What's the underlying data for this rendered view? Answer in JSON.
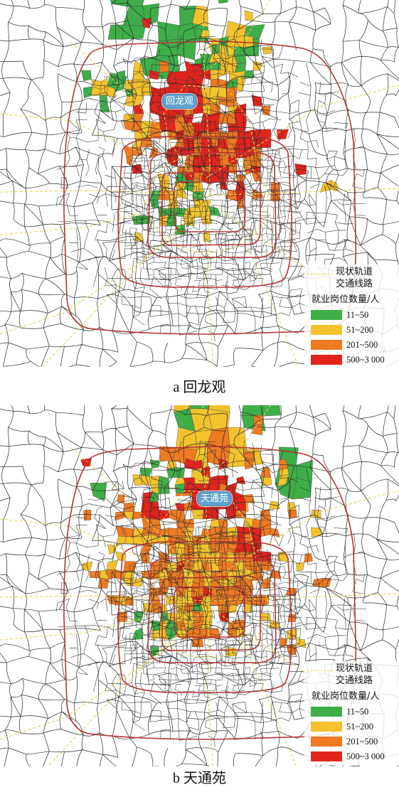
{
  "panels": [
    {
      "id": "a",
      "caption": "a 回龙观",
      "location_label": "回龙观"
    },
    {
      "id": "b",
      "caption": "b 天通苑",
      "location_label": "天通苑"
    }
  ],
  "legend": {
    "rail_label_line1": "现状轨道",
    "rail_label_line2": "交通线路",
    "title": "就业岗位数量/人",
    "classes": [
      {
        "label": "11~50",
        "color": "#3fae49"
      },
      {
        "label": "51~200",
        "color": "#f3c22d"
      },
      {
        "label": "201~500",
        "color": "#ee7a22"
      },
      {
        "label": "500~3 000",
        "color": "#e3241c"
      }
    ]
  },
  "colors": {
    "ring_road": "#b33434",
    "road": "#2a2a2a",
    "rail_line": "#e6d54e",
    "label_bubble": "#5fa3cf"
  }
}
